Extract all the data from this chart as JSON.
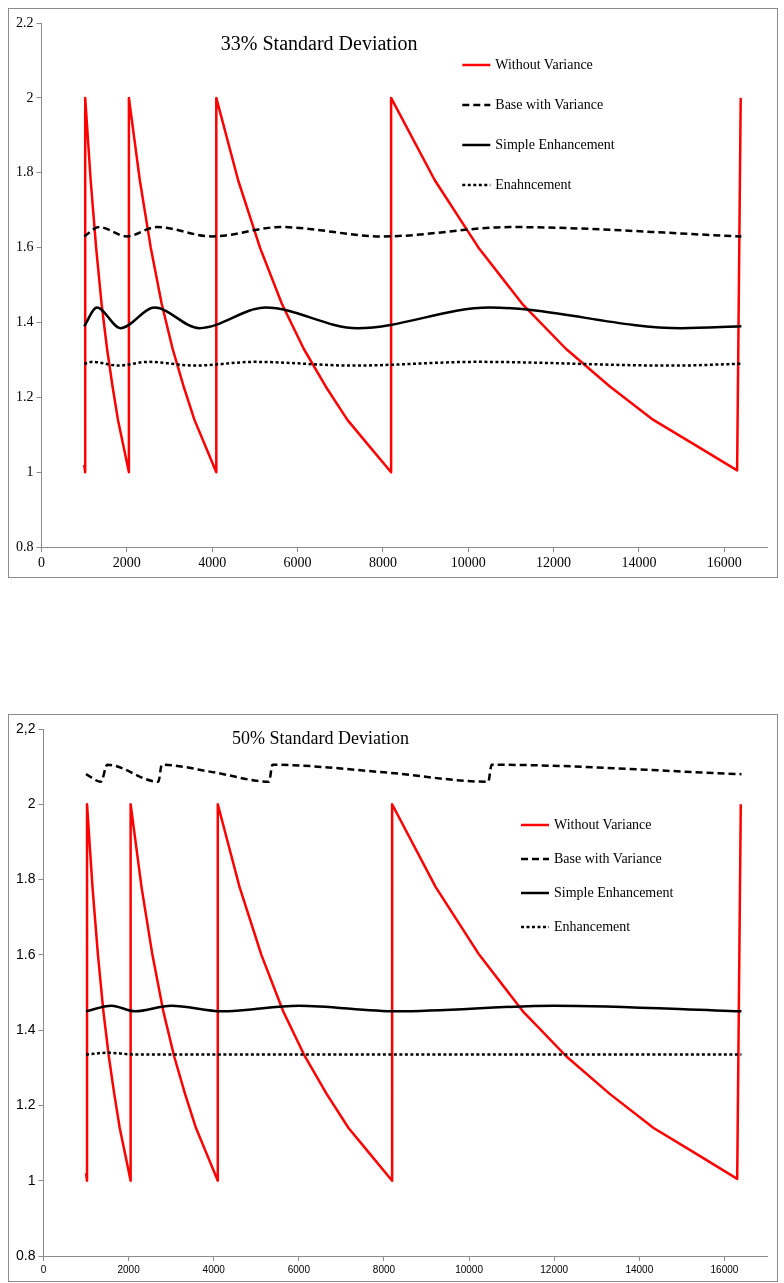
{
  "chart_data": [
    {
      "type": "line",
      "title": "33% Standard Deviation",
      "xlim": [
        0,
        17000
      ],
      "xticks": [
        0,
        2000,
        4000,
        6000,
        8000,
        10000,
        12000,
        14000,
        16000
      ],
      "ylim": [
        0.8,
        2.2
      ],
      "yticks": [
        0.8,
        1,
        1.2,
        1.4,
        1.6,
        1.8,
        2,
        2.2
      ],
      "grid": false,
      "legend": "top right",
      "marker": "none",
      "series": [
        {
          "name": "Without Variance",
          "color": "#ff0000",
          "line_style": "solid",
          "x": [
            1000,
            1024,
            1024,
            1152,
            1280,
            1408,
            1536,
            1664,
            1792,
            1920,
            2048,
            2048,
            2304,
            2560,
            2816,
            3072,
            3328,
            3584,
            3840,
            4096,
            4096,
            4608,
            5120,
            5632,
            6144,
            6656,
            7168,
            7680,
            8192,
            8192,
            9216,
            10240,
            11264,
            12288,
            13312,
            14336,
            15360,
            16300,
            16384
          ],
          "values": [
            1.02,
            1,
            2,
            1.78,
            1.6,
            1.45,
            1.33,
            1.23,
            1.14,
            1.07,
            1,
            2,
            1.78,
            1.6,
            1.45,
            1.33,
            1.23,
            1.14,
            1.07,
            1,
            2,
            1.78,
            1.6,
            1.45,
            1.33,
            1.23,
            1.14,
            1.07,
            1,
            2,
            1.78,
            1.6,
            1.45,
            1.33,
            1.23,
            1.14,
            1.07,
            1.005,
            2
          ]
        },
        {
          "name": "Base with Variance",
          "color": "#000000",
          "line_style": "dashed",
          "x": [
            1000,
            1350,
            2000,
            2700,
            4000,
            5600,
            8000,
            11000,
            16400
          ],
          "values": [
            1.63,
            1.655,
            1.63,
            1.655,
            1.63,
            1.655,
            1.63,
            1.655,
            1.63
          ]
        },
        {
          "name": "Simple Enhancement",
          "color": "#000000",
          "line_style": "solid",
          "x": [
            1000,
            1300,
            1850,
            2650,
            3700,
            5250,
            7400,
            10500,
            15000,
            16400
          ],
          "values": [
            1.39,
            1.44,
            1.385,
            1.44,
            1.385,
            1.44,
            1.385,
            1.44,
            1.385,
            1.39
          ]
        },
        {
          "name": "Enahncement",
          "color": "#000000",
          "line_style": "dotted",
          "x": [
            1000,
            1200,
            1800,
            2500,
            3600,
            5000,
            7300,
            10200,
            14800,
            16400
          ],
          "values": [
            1.29,
            1.295,
            1.285,
            1.295,
            1.285,
            1.295,
            1.285,
            1.295,
            1.285,
            1.29
          ]
        }
      ]
    },
    {
      "type": "line",
      "title": "50% Standard Deviation",
      "xlim": [
        0,
        17000
      ],
      "xticks": [
        0,
        2000,
        4000,
        6000,
        8000,
        10000,
        12000,
        14000,
        16000
      ],
      "ylim": [
        0.8,
        2.2
      ],
      "yticks": [
        0.8,
        1,
        1.2,
        1.4,
        1.6,
        1.8,
        2,
        {
          "value": 2.2,
          "label": "2,2"
        }
      ],
      "grid": false,
      "legend": "top right",
      "marker": "none",
      "series": [
        {
          "name": "Without Variance",
          "color": "#ff0000",
          "line_style": "solid",
          "x": [
            1000,
            1024,
            1024,
            1152,
            1280,
            1408,
            1536,
            1664,
            1792,
            1920,
            2048,
            2048,
            2304,
            2560,
            2816,
            3072,
            3328,
            3584,
            3840,
            4096,
            4096,
            4608,
            5120,
            5632,
            6144,
            6656,
            7168,
            7680,
            8192,
            8192,
            9216,
            10240,
            11264,
            12288,
            13312,
            14336,
            15360,
            16300,
            16384
          ],
          "values": [
            1.02,
            1,
            2,
            1.78,
            1.6,
            1.45,
            1.33,
            1.23,
            1.14,
            1.07,
            1,
            2,
            1.78,
            1.6,
            1.45,
            1.33,
            1.23,
            1.14,
            1.07,
            1,
            2,
            1.78,
            1.6,
            1.45,
            1.33,
            1.23,
            1.14,
            1.07,
            1,
            2,
            1.78,
            1.6,
            1.45,
            1.33,
            1.23,
            1.14,
            1.07,
            1.005,
            2
          ]
        },
        {
          "name": "Base with Variance",
          "color": "#000000",
          "line_style": "dashed",
          "x": [
            1000,
            1350,
            1500,
            2700,
            2780,
            4000,
            5300,
            5380,
            8000,
            10450,
            10530,
            16400
          ],
          "values": [
            2.08,
            2.06,
            2.105,
            2.06,
            2.105,
            2.085,
            2.06,
            2.105,
            2.085,
            2.06,
            2.105,
            2.08
          ]
        },
        {
          "name": "Simple Enhancement",
          "color": "#000000",
          "line_style": "solid",
          "x": [
            1000,
            1600,
            2150,
            3000,
            4200,
            6000,
            8300,
            12000,
            16400
          ],
          "values": [
            1.45,
            1.465,
            1.45,
            1.465,
            1.45,
            1.465,
            1.45,
            1.465,
            1.45
          ]
        },
        {
          "name": "Enhancement",
          "color": "#000000",
          "line_style": "dotted",
          "x": [
            1000,
            1500,
            2200,
            16400
          ],
          "values": [
            1.335,
            1.34,
            1.335,
            1.335
          ]
        }
      ]
    }
  ]
}
